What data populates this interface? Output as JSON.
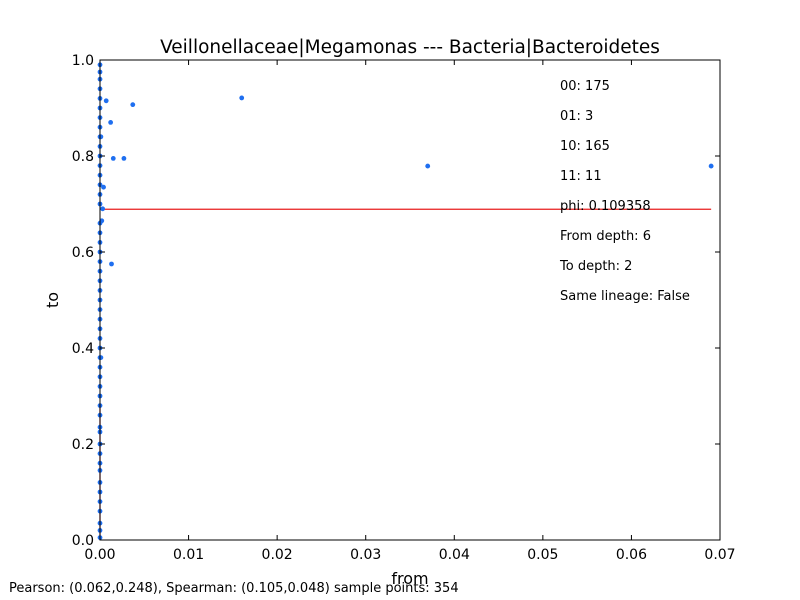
{
  "chart_data": {
    "type": "scatter",
    "title": "Veillonellaceae|Megamonas --- Bacteria|Bacteroidetes",
    "xlabel": "from",
    "ylabel": "to",
    "xlim": [
      0.0,
      0.07
    ],
    "ylim": [
      0.0,
      1.0
    ],
    "xticks": [
      "0.00",
      "0.01",
      "0.02",
      "0.03",
      "0.04",
      "0.05",
      "0.06",
      "0.07"
    ],
    "yticks": [
      "0.0",
      "0.2",
      "0.4",
      "0.6",
      "0.8",
      "1.0"
    ],
    "grid": false,
    "point_color": "#1f6ff0",
    "line_color": "#e81e1e",
    "points": [
      {
        "x": 0.0,
        "y": 0.005
      },
      {
        "x": 0.0,
        "y": 0.02
      },
      {
        "x": 0.0,
        "y": 0.035
      },
      {
        "x": 0.0,
        "y": 0.06
      },
      {
        "x": 0.0,
        "y": 0.08
      },
      {
        "x": 0.0,
        "y": 0.1
      },
      {
        "x": 0.0,
        "y": 0.12
      },
      {
        "x": 0.0,
        "y": 0.145
      },
      {
        "x": 0.0,
        "y": 0.16
      },
      {
        "x": 0.0,
        "y": 0.18
      },
      {
        "x": 0.0,
        "y": 0.2
      },
      {
        "x": 0.0,
        "y": 0.225
      },
      {
        "x": 0.0,
        "y": 0.235
      },
      {
        "x": 0.0,
        "y": 0.26
      },
      {
        "x": 0.0,
        "y": 0.28
      },
      {
        "x": 0.0,
        "y": 0.3
      },
      {
        "x": 0.0,
        "y": 0.32
      },
      {
        "x": 0.0,
        "y": 0.34
      },
      {
        "x": 0.0,
        "y": 0.36
      },
      {
        "x": 0.0,
        "y": 0.38
      },
      {
        "x": 0.0,
        "y": 0.4
      },
      {
        "x": 0.0,
        "y": 0.42
      },
      {
        "x": 0.0,
        "y": 0.44
      },
      {
        "x": 0.0,
        "y": 0.46
      },
      {
        "x": 0.0,
        "y": 0.48
      },
      {
        "x": 0.0,
        "y": 0.5
      },
      {
        "x": 0.0,
        "y": 0.52
      },
      {
        "x": 0.0,
        "y": 0.54
      },
      {
        "x": 0.0,
        "y": 0.56
      },
      {
        "x": 0.0,
        "y": 0.58
      },
      {
        "x": 0.0,
        "y": 0.6
      },
      {
        "x": 0.0,
        "y": 0.62
      },
      {
        "x": 0.0,
        "y": 0.64
      },
      {
        "x": 0.0,
        "y": 0.66
      },
      {
        "x": 0.0,
        "y": 0.7
      },
      {
        "x": 0.0,
        "y": 0.72
      },
      {
        "x": 0.0,
        "y": 0.74
      },
      {
        "x": 0.0,
        "y": 0.76
      },
      {
        "x": 0.0,
        "y": 0.78
      },
      {
        "x": 0.0,
        "y": 0.8
      },
      {
        "x": 0.0,
        "y": 0.82
      },
      {
        "x": 0.0,
        "y": 0.84
      },
      {
        "x": 0.0,
        "y": 0.86
      },
      {
        "x": 0.0,
        "y": 0.88
      },
      {
        "x": 0.0,
        "y": 0.9
      },
      {
        "x": 0.0,
        "y": 0.92
      },
      {
        "x": 0.0,
        "y": 0.94
      },
      {
        "x": 0.0,
        "y": 0.96
      },
      {
        "x": 0.0,
        "y": 0.975
      },
      {
        "x": 0.0,
        "y": 0.99
      },
      {
        "x": 0.0001,
        "y": 0.38
      },
      {
        "x": 0.0001,
        "y": 0.84
      },
      {
        "x": 0.0002,
        "y": 0.665
      },
      {
        "x": 0.0003,
        "y": 0.69
      },
      {
        "x": 0.0004,
        "y": 0.735
      },
      {
        "x": 0.0007,
        "y": 0.915
      },
      {
        "x": 0.0012,
        "y": 0.87
      },
      {
        "x": 0.0013,
        "y": 0.575
      },
      {
        "x": 0.0015,
        "y": 0.795
      },
      {
        "x": 0.0027,
        "y": 0.795
      },
      {
        "x": 0.0037,
        "y": 0.907
      },
      {
        "x": 0.016,
        "y": 0.921
      },
      {
        "x": 0.037,
        "y": 0.779
      },
      {
        "x": 0.069,
        "y": 0.779
      }
    ],
    "lines": [
      {
        "x": [
          0.0,
          0.069
        ],
        "y": [
          0.689,
          0.689
        ]
      },
      {
        "x": [
          0.0,
          0.0
        ],
        "y": [
          0.0,
          0.28
        ]
      }
    ],
    "annotations": [
      "00: 175",
      "01: 3",
      "10: 165",
      "11: 11",
      "phi: 0.109358",
      "From depth: 6",
      "To depth: 2",
      "Same lineage: False"
    ]
  },
  "footer": "Pearson: (0.062,0.248), Spearman: (0.105,0.048) sample points: 354"
}
